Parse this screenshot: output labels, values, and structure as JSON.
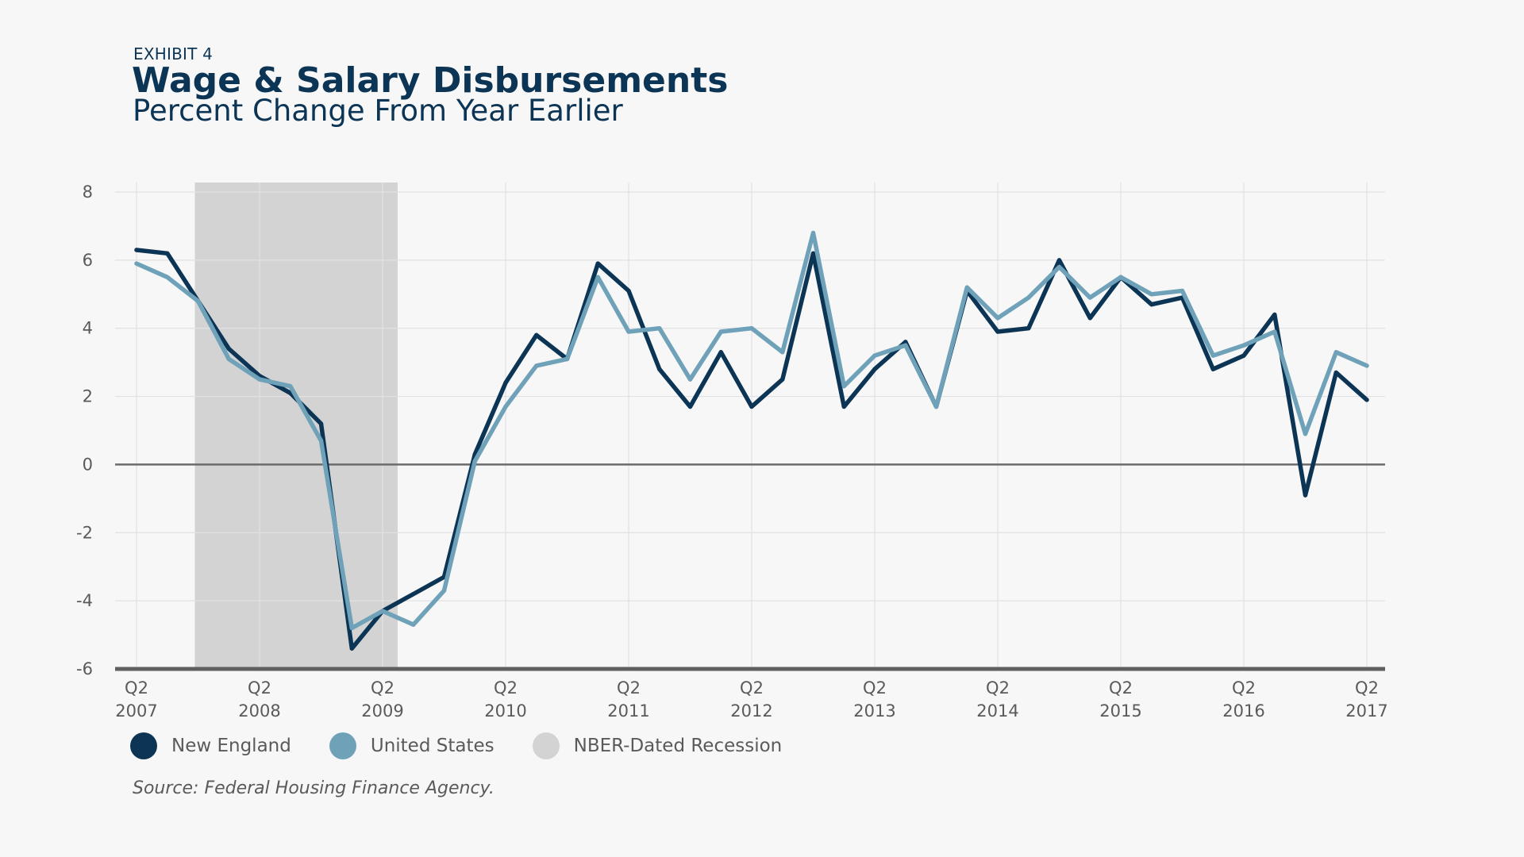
{
  "header": {
    "exhibit": "EXHIBIT 4",
    "title": "Wage & Salary Disbursements",
    "subtitle": "Percent Change From Year Earlier"
  },
  "source": "Source: Federal Housing Finance Agency.",
  "legend": [
    {
      "label": "New England",
      "color": "#0c3555"
    },
    {
      "label": "United States",
      "color": "#6fa2b9"
    },
    {
      "label": "NBER-Dated Recession",
      "color": "#d3d3d3"
    }
  ],
  "chart_data": {
    "type": "line",
    "title": "Wage & Salary Disbursements",
    "subtitle": "Percent Change From Year Earlier",
    "x": [
      "2007Q2",
      "2007Q3",
      "2007Q4",
      "2008Q1",
      "2008Q2",
      "2008Q3",
      "2008Q4",
      "2009Q1",
      "2009Q2",
      "2009Q3",
      "2009Q4",
      "2010Q1",
      "2010Q2",
      "2010Q3",
      "2010Q4",
      "2011Q1",
      "2011Q2",
      "2011Q3",
      "2011Q4",
      "2012Q1",
      "2012Q2",
      "2012Q3",
      "2012Q4",
      "2013Q1",
      "2013Q2",
      "2013Q3",
      "2013Q4",
      "2014Q1",
      "2014Q2",
      "2014Q3",
      "2014Q4",
      "2015Q1",
      "2015Q2",
      "2015Q3",
      "2015Q4",
      "2016Q1",
      "2016Q2",
      "2016Q3",
      "2016Q4",
      "2017Q1",
      "2017Q2"
    ],
    "x_tick_labels": [
      {
        "top": "Q2",
        "bottom": "2007",
        "at": "2007Q2"
      },
      {
        "top": "Q2",
        "bottom": "2008",
        "at": "2008Q2"
      },
      {
        "top": "Q2",
        "bottom": "2009",
        "at": "2009Q2"
      },
      {
        "top": "Q2",
        "bottom": "2010",
        "at": "2010Q2"
      },
      {
        "top": "Q2",
        "bottom": "2011",
        "at": "2011Q2"
      },
      {
        "top": "Q2",
        "bottom": "2012",
        "at": "2012Q2"
      },
      {
        "top": "Q2",
        "bottom": "2013",
        "at": "2013Q2"
      },
      {
        "top": "Q2",
        "bottom": "2014",
        "at": "2014Q2"
      },
      {
        "top": "Q2",
        "bottom": "2015",
        "at": "2015Q2"
      },
      {
        "top": "Q2",
        "bottom": "2016",
        "at": "2016Q2"
      },
      {
        "top": "Q2",
        "bottom": "2017",
        "at": "2017Q2"
      }
    ],
    "y_ticks": [
      8,
      6,
      4,
      2,
      0,
      -2,
      -4,
      -6
    ],
    "ylim": [
      -6,
      8
    ],
    "grid": true,
    "recession": {
      "start": "2007Q4",
      "end": "2009Q2"
    },
    "series": [
      {
        "name": "New England",
        "color": "#0c3555",
        "values": [
          6.3,
          6.2,
          4.8,
          3.4,
          2.6,
          2.1,
          1.2,
          -5.4,
          -4.3,
          -3.8,
          -3.3,
          0.3,
          2.4,
          3.8,
          3.1,
          5.9,
          5.1,
          2.8,
          1.7,
          3.3,
          1.7,
          2.5,
          6.2,
          1.7,
          2.8,
          3.6,
          1.7,
          5.1,
          3.9,
          4.0,
          6.0,
          4.3,
          5.5,
          4.7,
          4.9,
          2.8,
          3.2,
          4.4,
          -0.9,
          2.7,
          1.9
        ]
      },
      {
        "name": "United States",
        "color": "#6fa2b9",
        "values": [
          5.9,
          5.5,
          4.8,
          3.1,
          2.5,
          2.3,
          0.7,
          -4.8,
          -4.3,
          -4.7,
          -3.7,
          0.1,
          1.7,
          2.9,
          3.1,
          5.5,
          3.9,
          4.0,
          2.5,
          3.9,
          4.0,
          3.3,
          6.8,
          2.3,
          3.2,
          3.5,
          1.7,
          5.2,
          4.3,
          4.9,
          5.8,
          4.9,
          5.5,
          5.0,
          5.1,
          3.2,
          3.5,
          3.9,
          0.9,
          3.3,
          2.9
        ]
      }
    ],
    "legend": [
      "New England",
      "United States",
      "NBER-Dated Recession"
    ],
    "legend_position": "bottom-left"
  }
}
